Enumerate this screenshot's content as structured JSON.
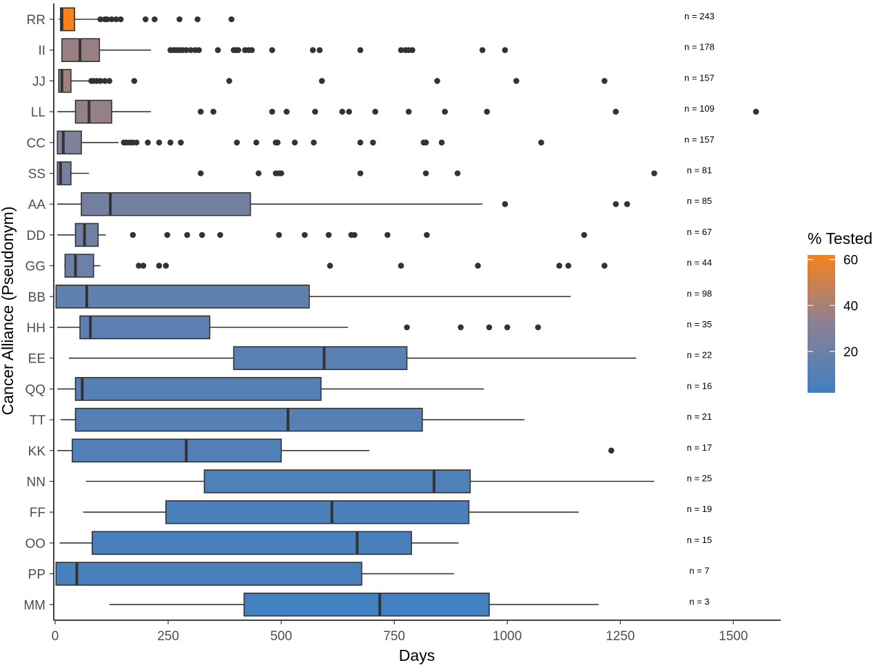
{
  "chart_data": {
    "type": "boxplot",
    "orientation": "horizontal",
    "title": "",
    "xlabel": "Days",
    "ylabel": "Cancer Alliance (Pseudonym)",
    "xlim": [
      -5,
      1610
    ],
    "xticks": [
      0,
      250,
      500,
      750,
      1000,
      1250,
      1500
    ],
    "grid": false,
    "legend": {
      "title": "% Tested",
      "position": "right",
      "range": [
        2,
        62
      ],
      "ticks": [
        20,
        40,
        60
      ],
      "colors": [
        "#3f80c2",
        "#8b8094",
        "#f5821e"
      ]
    },
    "categories": [
      "RR",
      "II",
      "JJ",
      "LL",
      "CC",
      "SS",
      "AA",
      "DD",
      "GG",
      "BB",
      "HH",
      "EE",
      "QQ",
      "TT",
      "KK",
      "NN",
      "FF",
      "OO",
      "PP",
      "MM"
    ],
    "boxes": [
      {
        "name": "RR",
        "n_label": "n = 243",
        "pct_tested": 62,
        "whisker_low": 8,
        "q1": 12,
        "median": 15,
        "q3": 43,
        "whisker_high": 95,
        "outliers": [
          100,
          110,
          115,
          125,
          135,
          145,
          200,
          220,
          275,
          315,
          390
        ]
      },
      {
        "name": "II",
        "n_label": "n = 178",
        "pct_tested": 36,
        "whisker_low": 15,
        "q1": 15,
        "median": 55,
        "q3": 98,
        "whisker_high": 212,
        "outliers": [
          255,
          262,
          268,
          275,
          282,
          290,
          300,
          310,
          318,
          360,
          395,
          400,
          405,
          420,
          428,
          435,
          480,
          570,
          585,
          675,
          765,
          775,
          782,
          790,
          945,
          995
        ]
      },
      {
        "name": "JJ",
        "n_label": "n = 157",
        "pct_tested": 38,
        "whisker_low": 8,
        "q1": 8,
        "median": 15,
        "q3": 35,
        "whisker_high": 75,
        "outliers": [
          80,
          85,
          92,
          100,
          110,
          120,
          175,
          385,
          590,
          845,
          1020,
          1215
        ]
      },
      {
        "name": "LL",
        "n_label": "n = 109",
        "pct_tested": 35,
        "whisker_low": 5,
        "q1": 45,
        "median": 75,
        "q3": 125,
        "whisker_high": 212,
        "outliers": [
          322,
          350,
          480,
          512,
          575,
          635,
          650,
          708,
          782,
          862,
          955,
          1240,
          1550
        ]
      },
      {
        "name": "CC",
        "n_label": "n = 157",
        "pct_tested": 27,
        "whisker_low": 5,
        "q1": 5,
        "median": 18,
        "q3": 58,
        "whisker_high": 140,
        "outliers": [
          152,
          158,
          165,
          172,
          180,
          205,
          230,
          255,
          278,
          402,
          445,
          488,
          492,
          530,
          572,
          675,
          703,
          815,
          820,
          855,
          1075
        ]
      },
      {
        "name": "SS",
        "n_label": "n = 81",
        "pct_tested": 24,
        "whisker_low": 5,
        "q1": 5,
        "median": 12,
        "q3": 35,
        "whisker_high": 75,
        "outliers": [
          322,
          450,
          488,
          495,
          500,
          675,
          820,
          890,
          1325
        ]
      },
      {
        "name": "AA",
        "n_label": "n = 85",
        "pct_tested": 23,
        "whisker_low": 5,
        "q1": 58,
        "median": 122,
        "q3": 432,
        "whisker_high": 945,
        "outliers": [
          995,
          1240,
          1265
        ]
      },
      {
        "name": "DD",
        "n_label": "n = 67",
        "pct_tested": 21,
        "whisker_low": 5,
        "q1": 45,
        "median": 65,
        "q3": 95,
        "whisker_high": 112,
        "outliers": [
          172,
          248,
          292,
          325,
          365,
          495,
          552,
          605,
          655,
          662,
          735,
          822,
          1170
        ]
      },
      {
        "name": "GG",
        "n_label": "n = 44",
        "pct_tested": 20,
        "whisker_low": 20,
        "q1": 22,
        "median": 45,
        "q3": 85,
        "whisker_high": 100,
        "outliers": [
          185,
          195,
          230,
          245,
          608,
          765,
          935,
          1115,
          1135,
          1215
        ]
      },
      {
        "name": "BB",
        "n_label": "n = 98",
        "pct_tested": 15,
        "whisker_low": 2,
        "q1": 2,
        "median": 70,
        "q3": 562,
        "whisker_high": 1140,
        "outliers": []
      },
      {
        "name": "HH",
        "n_label": "n = 35",
        "pct_tested": 13,
        "whisker_low": 5,
        "q1": 55,
        "median": 78,
        "q3": 342,
        "whisker_high": 648,
        "outliers": [
          778,
          897,
          960,
          1000,
          1068
        ]
      },
      {
        "name": "EE",
        "n_label": "n = 22",
        "pct_tested": 12,
        "whisker_low": 30,
        "q1": 395,
        "median": 595,
        "q3": 778,
        "whisker_high": 1285,
        "outliers": []
      },
      {
        "name": "QQ",
        "n_label": "n = 16",
        "pct_tested": 11,
        "whisker_low": 5,
        "q1": 45,
        "median": 60,
        "q3": 588,
        "whisker_high": 948,
        "outliers": []
      },
      {
        "name": "TT",
        "n_label": "n = 21",
        "pct_tested": 11,
        "whisker_low": 12,
        "q1": 45,
        "median": 515,
        "q3": 812,
        "whisker_high": 1038,
        "outliers": []
      },
      {
        "name": "KK",
        "n_label": "n = 17",
        "pct_tested": 10,
        "whisker_low": 5,
        "q1": 38,
        "median": 290,
        "q3": 500,
        "whisker_high": 695,
        "outliers": [
          1230
        ]
      },
      {
        "name": "NN",
        "n_label": "n = 25",
        "pct_tested": 8,
        "whisker_low": 68,
        "q1": 330,
        "median": 838,
        "q3": 918,
        "whisker_high": 1325,
        "outliers": []
      },
      {
        "name": "FF",
        "n_label": "n = 19",
        "pct_tested": 7,
        "whisker_low": 62,
        "q1": 245,
        "median": 612,
        "q3": 915,
        "whisker_high": 1158,
        "outliers": []
      },
      {
        "name": "OO",
        "n_label": "n = 15",
        "pct_tested": 6,
        "whisker_low": 10,
        "q1": 82,
        "median": 668,
        "q3": 788,
        "whisker_high": 892,
        "outliers": []
      },
      {
        "name": "PP",
        "n_label": "n = 7",
        "pct_tested": 5,
        "whisker_low": 2,
        "q1": 2,
        "median": 48,
        "q3": 678,
        "whisker_high": 882,
        "outliers": []
      },
      {
        "name": "MM",
        "n_label": "n = 3",
        "pct_tested": 3,
        "whisker_low": 120,
        "q1": 418,
        "median": 718,
        "q3": 960,
        "whisker_high": 1202,
        "outliers": []
      }
    ]
  }
}
